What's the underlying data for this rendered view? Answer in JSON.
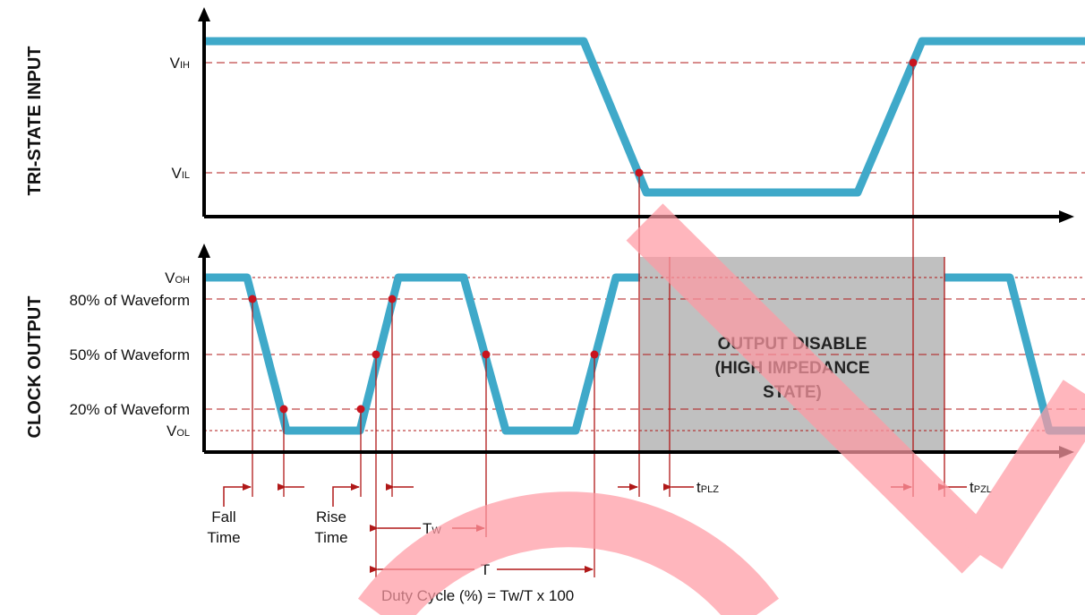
{
  "top_panel": {
    "y_axis_title": "TRI-STATE INPUT",
    "levels": [
      {
        "main": "V",
        "sub": "IH"
      },
      {
        "main": "V",
        "sub": "IL"
      }
    ]
  },
  "bottom_panel": {
    "y_axis_title": "CLOCK OUTPUT",
    "levels": [
      {
        "main": "V",
        "sub": "OH"
      },
      {
        "main": "80% of Waveform",
        "sub": ""
      },
      {
        "main": "50% of Waveform",
        "sub": ""
      },
      {
        "main": "20% of Waveform",
        "sub": ""
      },
      {
        "main": "V",
        "sub": "OL"
      }
    ],
    "disable_box": [
      "OUTPUT DISABLE",
      "(HIGH IMPEDANCE",
      "STATE)"
    ]
  },
  "annotations": {
    "fall_time": [
      "Fall",
      "Time"
    ],
    "rise_time": [
      "Rise",
      "Time"
    ],
    "tw": {
      "main": "T",
      "sub": "W"
    },
    "t": "T",
    "duty_cycle": "Duty Cycle (%) = Tw/T x 100",
    "tplz": {
      "main": "t",
      "sub": "PLZ"
    },
    "tpzl": {
      "main": "t",
      "sub": "PZL"
    }
  },
  "colors": {
    "waveform": "#3fa9c9",
    "guide": "#b01818",
    "axis": "#000000",
    "disable_box": "#8c8c8c",
    "watermark": "#ff9aa4"
  }
}
